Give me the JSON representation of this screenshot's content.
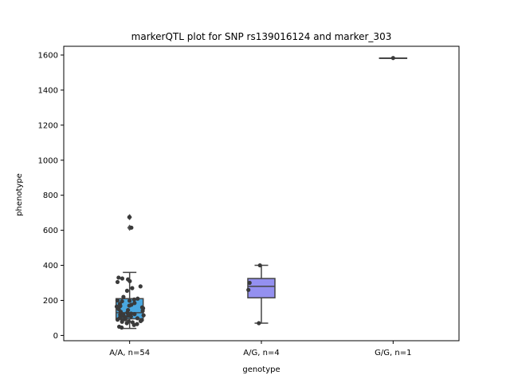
{
  "chart_data": {
    "type": "boxplot",
    "title": "markerQTL plot for SNP rs139016124 and marker_303",
    "xlabel": "genotype",
    "ylabel": "phenotype",
    "ylim": [
      -30,
      1650
    ],
    "yticks": [
      0,
      200,
      400,
      600,
      800,
      1000,
      1200,
      1400,
      1600
    ],
    "grid": false,
    "categories": [
      "A/A, n=54",
      "A/G, n=4",
      "G/G, n=1"
    ],
    "boxes": [
      {
        "category": "A/A, n=54",
        "color": "#4aa8e0",
        "whisker_low": 40,
        "q1": 95,
        "median": 130,
        "q3": 210,
        "whisker_high": 360,
        "outliers": [
          615,
          675
        ],
        "points": [
          675,
          615,
          330,
          325,
          320,
          310,
          305,
          280,
          270,
          255,
          220,
          210,
          205,
          200,
          198,
          195,
          185,
          180,
          175,
          170,
          168,
          165,
          160,
          155,
          150,
          145,
          140,
          135,
          130,
          125,
          122,
          120,
          118,
          115,
          112,
          110,
          108,
          105,
          100,
          98,
          95,
          92,
          90,
          88,
          85,
          82,
          80,
          78,
          75,
          70,
          65,
          60,
          50,
          45
        ]
      },
      {
        "category": "A/G, n=4",
        "color": "#9490f0",
        "whisker_low": 70,
        "q1": 215,
        "median": 280,
        "q3": 325,
        "whisker_high": 400,
        "outliers": [],
        "points": [
          400,
          300,
          260,
          70
        ]
      },
      {
        "category": "G/G, n=1",
        "color": "#e8a0d0",
        "whisker_low": 1583,
        "q1": 1583,
        "median": 1583,
        "q3": 1583,
        "whisker_high": 1583,
        "outliers": [],
        "points": [
          1583
        ]
      }
    ],
    "point_color": "#3a3a3a",
    "line_color": "#444444"
  }
}
